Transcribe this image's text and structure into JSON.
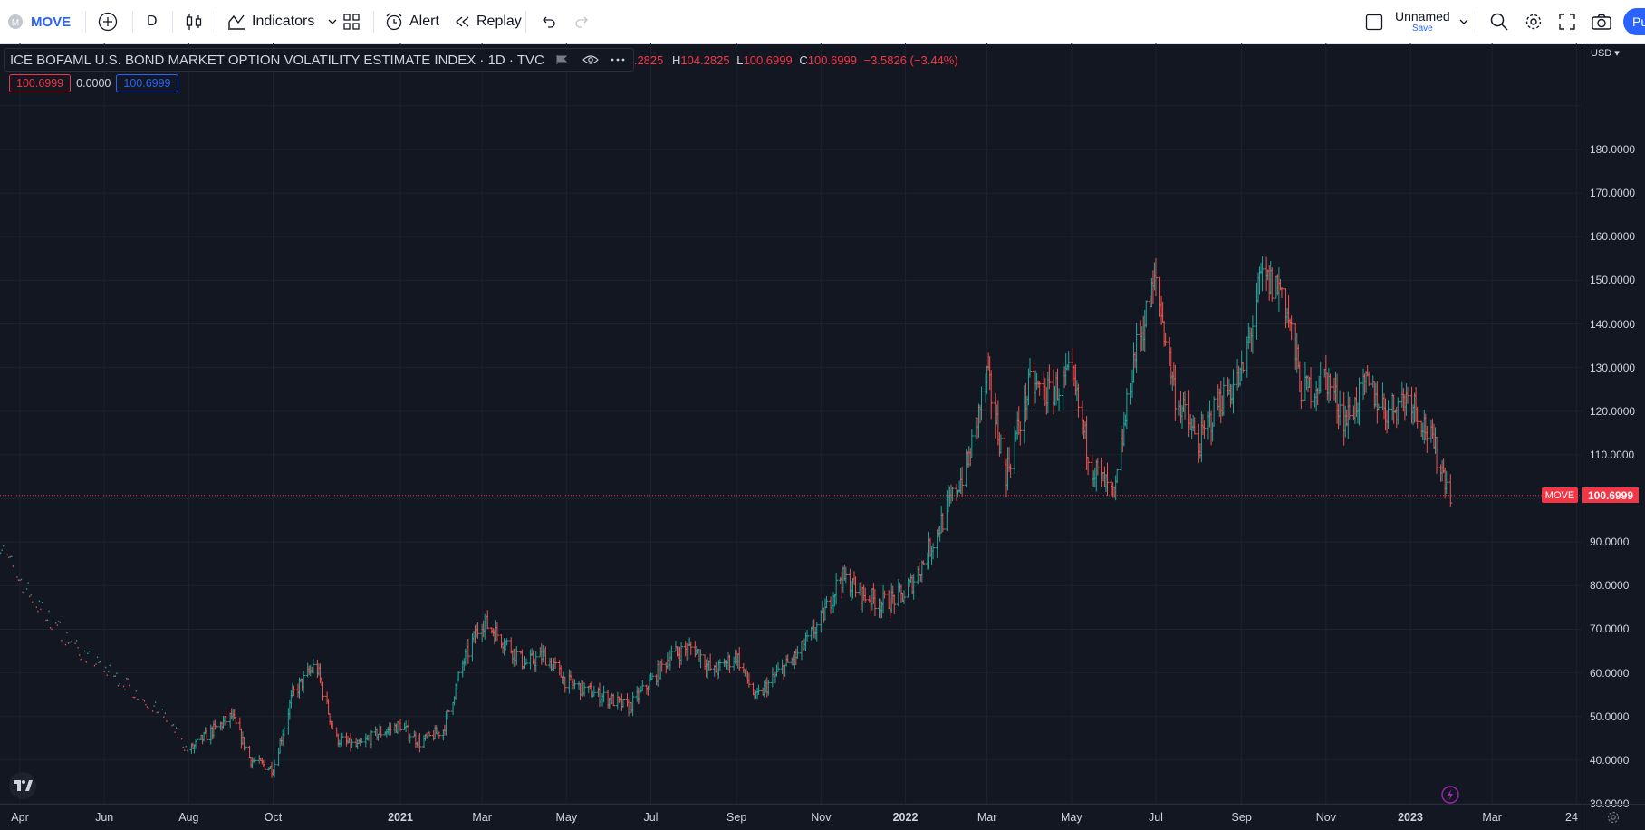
{
  "toolbar": {
    "symbol": "MOVE",
    "interval": "D",
    "indicators_label": "Indicators",
    "alert_label": "Alert",
    "replay_label": "Replay",
    "layout_name": "Unnamed",
    "save_label": "Save",
    "publish_label": "Pu"
  },
  "legend": {
    "title": "ICE BOFAML U.S. BOND MARKET OPTION VOLATILITY ESTIMATE INDEX · 1D · TVC",
    "open_partial": ".2825",
    "high_label": "H",
    "high_value": "104.2825",
    "low_label": "L",
    "low_value": "100.6999",
    "close_label": "C",
    "close_value": "100.6999",
    "change": "−3.5826 (−3.44%)",
    "val1": "100.6999",
    "val2": "0.0000",
    "val3": "100.6999"
  },
  "price_axis": {
    "currency": "USD",
    "labels": [
      "180.0000",
      "170.0000",
      "160.0000",
      "150.0000",
      "140.0000",
      "130.0000",
      "120.0000",
      "110.0000",
      "90.0000",
      "80.0000",
      "70.0000",
      "60.0000",
      "50.0000",
      "40.0000",
      "30.0000"
    ],
    "last_price": "100.6999",
    "symbol_tag": "MOVE"
  },
  "time_axis": {
    "labels": [
      "Apr",
      "Jun",
      "Aug",
      "Oct",
      "2021",
      "Mar",
      "May",
      "Jul",
      "Sep",
      "Nov",
      "2022",
      "Mar",
      "May",
      "Jul",
      "Sep",
      "Nov",
      "2023",
      "Mar",
      "24"
    ]
  },
  "colors": {
    "up": "#26a69a",
    "down": "#ef5350",
    "background": "#131722",
    "grid": "#1e222d",
    "accent": "#2962ff",
    "last_price": "#f23645"
  },
  "chart_data": {
    "type": "ohlc",
    "ylim": [
      30,
      190
    ],
    "x": [
      "2020-03-15",
      "2020-04-15",
      "2020-05-15",
      "2020-06-15",
      "2020-07-15",
      "2020-08-01",
      "2020-08-15",
      "2020-09-01",
      "2020-09-15",
      "2020-10-01",
      "2020-10-15",
      "2020-11-01",
      "2020-11-15",
      "2020-12-01",
      "2020-12-15",
      "2021-01-01",
      "2021-01-15",
      "2021-02-01",
      "2021-02-15",
      "2021-03-01",
      "2021-03-15",
      "2021-04-01",
      "2021-04-15",
      "2021-05-01",
      "2021-05-15",
      "2021-06-01",
      "2021-06-15",
      "2021-07-01",
      "2021-07-15",
      "2021-08-01",
      "2021-08-15",
      "2021-09-01",
      "2021-09-15",
      "2021-10-01",
      "2021-10-15",
      "2021-11-01",
      "2021-11-15",
      "2021-12-01",
      "2021-12-15",
      "2022-01-01",
      "2022-01-15",
      "2022-02-01",
      "2022-02-15",
      "2022-03-01",
      "2022-03-15",
      "2022-04-01",
      "2022-04-15",
      "2022-05-01",
      "2022-05-15",
      "2022-06-01",
      "2022-06-15",
      "2022-07-01",
      "2022-07-15",
      "2022-08-01",
      "2022-08-15",
      "2022-09-01",
      "2022-09-15",
      "2022-10-01",
      "2022-10-15",
      "2022-11-01",
      "2022-11-15",
      "2022-12-01",
      "2022-12-15",
      "2023-01-01",
      "2023-01-15",
      "2023-01-31"
    ],
    "series": [
      {
        "values": [
          90,
          75,
          65,
          58,
          50,
          42,
          46,
          50,
          40,
          38,
          55,
          62,
          45,
          43,
          46,
          48,
          44,
          47,
          62,
          72,
          68,
          62,
          64,
          58,
          56,
          54,
          52,
          58,
          64,
          66,
          60,
          64,
          54,
          60,
          64,
          72,
          82,
          78,
          76,
          78,
          86,
          98,
          108,
          128,
          106,
          126,
          124,
          128,
          108,
          100,
          132,
          150,
          124,
          112,
          122,
          128,
          150,
          148,
          124,
          128,
          118,
          126,
          120,
          124,
          114,
          101
        ]
      }
    ]
  }
}
